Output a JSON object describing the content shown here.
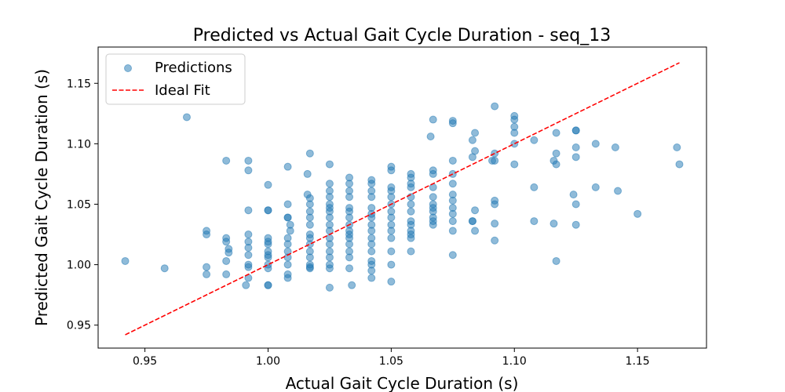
{
  "chart_data": {
    "type": "scatter",
    "title": "Predicted vs Actual Gait Cycle Duration - seq_13",
    "xlabel": "Actual Gait Cycle Duration (s)",
    "ylabel": "Predicted Gait Cycle Duration (s)",
    "xlim": [
      0.931,
      1.178
    ],
    "ylim": [
      0.931,
      1.18
    ],
    "xticks": [
      "0.95",
      "1.00",
      "1.05",
      "1.10",
      "1.15"
    ],
    "yticks": [
      "0.95",
      "1.00",
      "1.05",
      "1.10",
      "1.15"
    ],
    "grid": false,
    "legend": {
      "position": "top-left",
      "entries": [
        "Predictions",
        "Ideal Fit"
      ]
    },
    "colors": {
      "points": "#1f77b4",
      "ideal": "#ff0000"
    },
    "ideal_fit": {
      "name": "Ideal Fit",
      "x": [
        0.942,
        1.167
      ],
      "y": [
        0.942,
        1.167
      ]
    },
    "series": [
      {
        "name": "Predictions",
        "points": [
          [
            0.942,
            1.003
          ],
          [
            0.958,
            0.997
          ],
          [
            0.967,
            1.122
          ],
          [
            0.975,
            0.998
          ],
          [
            0.975,
            0.992
          ],
          [
            0.975,
            1.028
          ],
          [
            0.975,
            1.025
          ],
          [
            0.983,
            1.086
          ],
          [
            0.983,
            1.022
          ],
          [
            0.983,
            1.019
          ],
          [
            0.983,
            1.003
          ],
          [
            0.983,
            0.992
          ],
          [
            0.984,
            1.013
          ],
          [
            0.984,
            1.01
          ],
          [
            0.992,
            1.086
          ],
          [
            0.992,
            1.078
          ],
          [
            0.992,
            1.045
          ],
          [
            0.992,
            1.025
          ],
          [
            0.992,
            1.019
          ],
          [
            0.992,
            1.014
          ],
          [
            0.992,
            1.008
          ],
          [
            0.992,
            1.0
          ],
          [
            0.992,
            0.998
          ],
          [
            0.992,
            0.989
          ],
          [
            0.991,
            0.983
          ],
          [
            1.0,
            1.066
          ],
          [
            1.0,
            1.045
          ],
          [
            1.0,
            1.045
          ],
          [
            1.0,
            1.022
          ],
          [
            1.0,
            1.019
          ],
          [
            1.0,
            1.017
          ],
          [
            1.0,
            1.011
          ],
          [
            1.0,
            1.008
          ],
          [
            1.0,
            1.006
          ],
          [
            1.0,
            1.0
          ],
          [
            1.0,
            0.997
          ],
          [
            1.0,
            0.983
          ],
          [
            1.0,
            0.983
          ],
          [
            1.008,
            1.081
          ],
          [
            1.008,
            1.05
          ],
          [
            1.008,
            1.039
          ],
          [
            1.008,
            1.039
          ],
          [
            1.009,
            1.033
          ],
          [
            1.009,
            1.028
          ],
          [
            1.008,
            1.022
          ],
          [
            1.008,
            1.017
          ],
          [
            1.008,
            1.011
          ],
          [
            1.008,
            1.006
          ],
          [
            1.008,
            1.0
          ],
          [
            1.008,
            0.992
          ],
          [
            1.008,
            0.989
          ],
          [
            1.017,
            1.092
          ],
          [
            1.016,
            1.075
          ],
          [
            1.016,
            1.058
          ],
          [
            1.017,
            1.055
          ],
          [
            1.017,
            1.05
          ],
          [
            1.017,
            1.044
          ],
          [
            1.017,
            1.039
          ],
          [
            1.017,
            1.033
          ],
          [
            1.017,
            1.025
          ],
          [
            1.017,
            1.022
          ],
          [
            1.017,
            1.017
          ],
          [
            1.017,
            1.011
          ],
          [
            1.017,
            1.006
          ],
          [
            1.017,
            1.0
          ],
          [
            1.017,
            0.997
          ],
          [
            1.017,
            0.998
          ],
          [
            1.025,
            1.083
          ],
          [
            1.025,
            1.067
          ],
          [
            1.025,
            1.061
          ],
          [
            1.025,
            1.056
          ],
          [
            1.025,
            1.05
          ],
          [
            1.025,
            1.047
          ],
          [
            1.025,
            1.044
          ],
          [
            1.025,
            1.039
          ],
          [
            1.025,
            1.033
          ],
          [
            1.025,
            1.028
          ],
          [
            1.025,
            1.022
          ],
          [
            1.025,
            1.017
          ],
          [
            1.025,
            1.011
          ],
          [
            1.025,
            1.006
          ],
          [
            1.025,
            1.0
          ],
          [
            1.025,
            0.997
          ],
          [
            1.025,
            0.981
          ],
          [
            1.033,
            1.072
          ],
          [
            1.033,
            1.067
          ],
          [
            1.033,
            1.061
          ],
          [
            1.033,
            1.056
          ],
          [
            1.033,
            1.047
          ],
          [
            1.033,
            1.044
          ],
          [
            1.033,
            1.039
          ],
          [
            1.033,
            1.033
          ],
          [
            1.033,
            1.028
          ],
          [
            1.033,
            1.025
          ],
          [
            1.033,
            1.022
          ],
          [
            1.033,
            1.017
          ],
          [
            1.033,
            1.011
          ],
          [
            1.033,
            1.006
          ],
          [
            1.033,
            0.997
          ],
          [
            1.034,
            0.983
          ],
          [
            1.042,
            1.07
          ],
          [
            1.042,
            1.067
          ],
          [
            1.042,
            1.061
          ],
          [
            1.042,
            1.056
          ],
          [
            1.042,
            1.047
          ],
          [
            1.042,
            1.042
          ],
          [
            1.042,
            1.039
          ],
          [
            1.042,
            1.033
          ],
          [
            1.042,
            1.028
          ],
          [
            1.042,
            1.022
          ],
          [
            1.042,
            1.017
          ],
          [
            1.042,
            1.011
          ],
          [
            1.042,
            1.003
          ],
          [
            1.042,
            1.0
          ],
          [
            1.042,
            0.995
          ],
          [
            1.042,
            0.989
          ],
          [
            1.05,
            1.081
          ],
          [
            1.05,
            1.078
          ],
          [
            1.05,
            1.064
          ],
          [
            1.05,
            1.061
          ],
          [
            1.05,
            1.056
          ],
          [
            1.05,
            1.05
          ],
          [
            1.05,
            1.044
          ],
          [
            1.05,
            1.039
          ],
          [
            1.05,
            1.033
          ],
          [
            1.05,
            1.028
          ],
          [
            1.05,
            1.022
          ],
          [
            1.05,
            1.011
          ],
          [
            1.05,
            1.0
          ],
          [
            1.05,
            0.986
          ],
          [
            1.058,
            1.075
          ],
          [
            1.058,
            1.072
          ],
          [
            1.058,
            1.067
          ],
          [
            1.058,
            1.064
          ],
          [
            1.058,
            1.056
          ],
          [
            1.058,
            1.05
          ],
          [
            1.058,
            1.044
          ],
          [
            1.058,
            1.036
          ],
          [
            1.058,
            1.033
          ],
          [
            1.058,
            1.028
          ],
          [
            1.058,
            1.025
          ],
          [
            1.058,
            1.022
          ],
          [
            1.058,
            1.011
          ],
          [
            1.067,
            1.12
          ],
          [
            1.066,
            1.106
          ],
          [
            1.067,
            1.078
          ],
          [
            1.067,
            1.075
          ],
          [
            1.067,
            1.064
          ],
          [
            1.067,
            1.056
          ],
          [
            1.067,
            1.05
          ],
          [
            1.067,
            1.047
          ],
          [
            1.067,
            1.044
          ],
          [
            1.067,
            1.039
          ],
          [
            1.067,
            1.036
          ],
          [
            1.067,
            1.033
          ],
          [
            1.075,
            1.119
          ],
          [
            1.075,
            1.117
          ],
          [
            1.075,
            1.086
          ],
          [
            1.075,
            1.075
          ],
          [
            1.075,
            1.067
          ],
          [
            1.075,
            1.058
          ],
          [
            1.075,
            1.053
          ],
          [
            1.075,
            1.047
          ],
          [
            1.075,
            1.042
          ],
          [
            1.075,
            1.036
          ],
          [
            1.075,
            1.028
          ],
          [
            1.075,
            1.008
          ],
          [
            1.083,
            1.103
          ],
          [
            1.083,
            1.089
          ],
          [
            1.083,
            1.036
          ],
          [
            1.083,
            1.036
          ],
          [
            1.084,
            1.109
          ],
          [
            1.084,
            1.094
          ],
          [
            1.084,
            1.045
          ],
          [
            1.084,
            1.028
          ],
          [
            1.092,
            1.131
          ],
          [
            1.092,
            1.092
          ],
          [
            1.091,
            1.086
          ],
          [
            1.092,
            1.086
          ],
          [
            1.092,
            1.053
          ],
          [
            1.092,
            1.05
          ],
          [
            1.092,
            1.034
          ],
          [
            1.092,
            1.02
          ],
          [
            1.1,
            1.123
          ],
          [
            1.1,
            1.12
          ],
          [
            1.1,
            1.114
          ],
          [
            1.1,
            1.109
          ],
          [
            1.1,
            1.1
          ],
          [
            1.1,
            1.083
          ],
          [
            1.108,
            1.103
          ],
          [
            1.108,
            1.064
          ],
          [
            1.108,
            1.036
          ],
          [
            1.116,
            1.086
          ],
          [
            1.117,
            1.083
          ],
          [
            1.117,
            1.092
          ],
          [
            1.117,
            1.109
          ],
          [
            1.116,
            1.034
          ],
          [
            1.117,
            1.003
          ],
          [
            1.125,
            1.111
          ],
          [
            1.125,
            1.111
          ],
          [
            1.125,
            1.097
          ],
          [
            1.125,
            1.089
          ],
          [
            1.124,
            1.058
          ],
          [
            1.125,
            1.05
          ],
          [
            1.125,
            1.033
          ],
          [
            1.133,
            1.1
          ],
          [
            1.133,
            1.064
          ],
          [
            1.141,
            1.097
          ],
          [
            1.142,
            1.061
          ],
          [
            1.15,
            1.042
          ],
          [
            1.166,
            1.097
          ],
          [
            1.167,
            1.083
          ]
        ]
      }
    ]
  }
}
